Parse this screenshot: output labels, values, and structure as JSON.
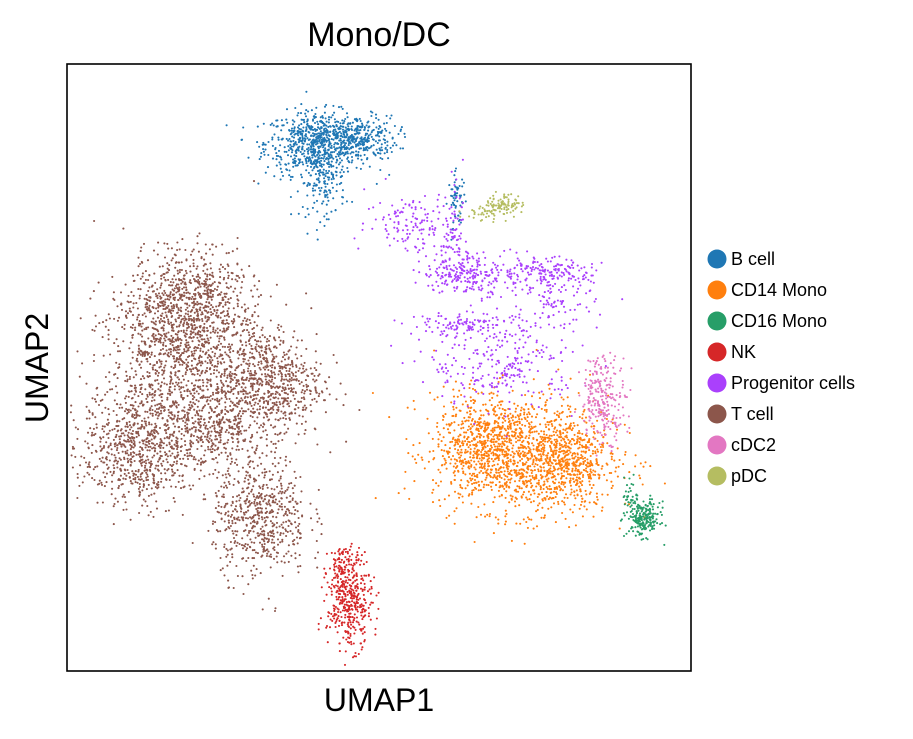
{
  "chart_data": {
    "type": "scatter",
    "title": "Mono/DC",
    "xlabel": "UMAP1",
    "ylabel": "UMAP2",
    "ticks": false,
    "grid": false,
    "legend_position": "right",
    "xlim": [
      0,
      100
    ],
    "ylim": [
      0,
      100
    ],
    "series": [
      {
        "name": "B cell",
        "color": "#1f77b4",
        "clusters": [
          {
            "cx": 40.2,
            "cy": 86.9,
            "sx": 4.2,
            "sy": 2.6,
            "n": 700
          },
          {
            "cx": 47.0,
            "cy": 87.8,
            "sx": 3.0,
            "sy": 1.8,
            "n": 250
          },
          {
            "cx": 41.0,
            "cy": 80.5,
            "sx": 1.8,
            "sy": 3.0,
            "n": 150
          },
          {
            "cx": 62.5,
            "cy": 77.5,
            "sx": 0.7,
            "sy": 2.2,
            "n": 60
          }
        ]
      },
      {
        "name": "CD14 Mono",
        "color": "#ff7f0e",
        "clusters": [
          {
            "cx": 72.7,
            "cy": 35.7,
            "sx": 7.0,
            "sy": 4.8,
            "n": 1300
          },
          {
            "cx": 66.0,
            "cy": 38.0,
            "sx": 2.8,
            "sy": 4.0,
            "n": 300
          },
          {
            "cx": 80.5,
            "cy": 33.5,
            "sx": 3.0,
            "sy": 3.5,
            "n": 300
          }
        ]
      },
      {
        "name": "CD16 Mono",
        "color": "#279e68",
        "clusters": [
          {
            "cx": 92.4,
            "cy": 25.0,
            "sx": 1.3,
            "sy": 1.4,
            "n": 220
          },
          {
            "cx": 90.5,
            "cy": 29.0,
            "sx": 0.7,
            "sy": 1.5,
            "n": 40
          }
        ]
      },
      {
        "name": "NK",
        "color": "#d62728",
        "clusters": [
          {
            "cx": 45.3,
            "cy": 11.1,
            "sx": 1.8,
            "sy": 3.6,
            "n": 380
          },
          {
            "cx": 44.5,
            "cy": 17.5,
            "sx": 1.3,
            "sy": 1.5,
            "n": 80
          }
        ]
      },
      {
        "name": "Progenitor cells",
        "color": "#aa40fc",
        "clusters": [
          {
            "cx": 64.0,
            "cy": 65.5,
            "sx": 3.5,
            "sy": 1.8,
            "n": 220
          },
          {
            "cx": 76.0,
            "cy": 65.5,
            "sx": 4.0,
            "sy": 1.3,
            "n": 180
          },
          {
            "cx": 64.5,
            "cy": 57.0,
            "sx": 5.0,
            "sy": 1.0,
            "n": 120
          },
          {
            "cx": 55.0,
            "cy": 74.0,
            "sx": 3.5,
            "sy": 2.5,
            "n": 120
          },
          {
            "cx": 70.0,
            "cy": 50.5,
            "sx": 6.0,
            "sy": 3.5,
            "n": 250
          },
          {
            "cx": 79.0,
            "cy": 60.5,
            "sx": 2.8,
            "sy": 2.2,
            "n": 80
          },
          {
            "cx": 62.0,
            "cy": 71.0,
            "sx": 1.2,
            "sy": 4.0,
            "n": 80
          }
        ]
      },
      {
        "name": "T cell",
        "color": "#8c564b",
        "clusters": [
          {
            "cx": 18.5,
            "cy": 55.0,
            "sx": 6.0,
            "sy": 6.0,
            "n": 1200
          },
          {
            "cx": 11.5,
            "cy": 37.0,
            "sx": 4.5,
            "sy": 5.0,
            "n": 800
          },
          {
            "cx": 32.0,
            "cy": 47.5,
            "sx": 4.5,
            "sy": 4.5,
            "n": 700
          },
          {
            "cx": 31.0,
            "cy": 25.5,
            "sx": 3.8,
            "sy": 5.0,
            "n": 600
          },
          {
            "cx": 23.0,
            "cy": 40.5,
            "sx": 4.0,
            "sy": 3.5,
            "n": 400
          },
          {
            "cx": 20.5,
            "cy": 62.5,
            "sx": 4.0,
            "sy": 3.5,
            "n": 300
          }
        ]
      },
      {
        "name": "cDC2",
        "color": "#e377c2",
        "clusters": [
          {
            "cx": 86.0,
            "cy": 45.0,
            "sx": 1.8,
            "sy": 3.5,
            "n": 240
          }
        ]
      },
      {
        "name": "pDC",
        "color": "#b5bd61",
        "clusters": [
          {
            "cx": 70.0,
            "cy": 76.8,
            "sx": 1.5,
            "sy": 0.9,
            "n": 90
          },
          {
            "cx": 66.5,
            "cy": 75.5,
            "sx": 1.5,
            "sy": 0.8,
            "n": 30
          }
        ]
      }
    ]
  }
}
